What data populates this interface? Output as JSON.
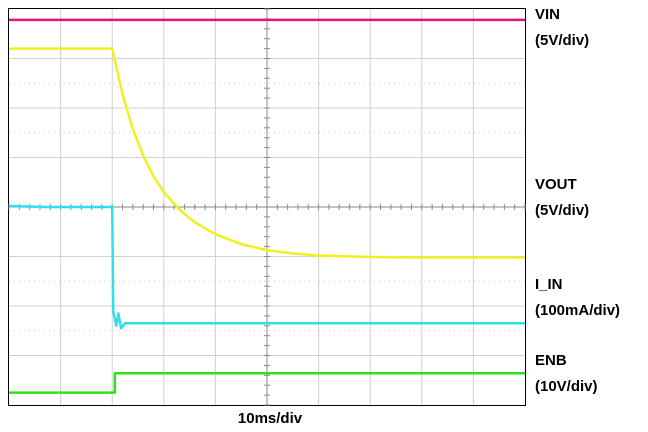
{
  "chart_data": {
    "type": "line",
    "title": "",
    "xlabel": "10ms/div",
    "ylabel": "",
    "grid": true,
    "x_divisions": 10,
    "y_divisions": 8,
    "xlim_div": [
      0,
      10
    ],
    "ylim_div": [
      0,
      8
    ],
    "series": [
      {
        "name": "VIN",
        "scale": "(5V/div)",
        "color": "#e0147a",
        "x_div": [
          0,
          10
        ],
        "y_div": [
          7.78,
          7.78
        ]
      },
      {
        "name": "VOUT",
        "scale": "(5V/div)",
        "color": "#f2ef20",
        "x_div": [
          0,
          1.0,
          2.0,
          2.0,
          2.2,
          2.4,
          2.6,
          2.8,
          3.0,
          3.3,
          3.6,
          4.0,
          4.5,
          5.0,
          5.5,
          6.0,
          7.0,
          8.0,
          9.0,
          10.0
        ],
        "y_div": [
          7.2,
          7.2,
          7.2,
          7.2,
          6.28,
          5.58,
          5.04,
          4.62,
          4.3,
          3.95,
          3.69,
          3.45,
          3.25,
          3.13,
          3.06,
          3.02,
          2.99,
          2.98,
          2.98,
          2.98
        ]
      },
      {
        "name": "I_IN",
        "scale": "(100mA/div)",
        "color": "#2ee0ec",
        "x_div": [
          0,
          0.7,
          2.0,
          2.02,
          2.08,
          2.12,
          2.17,
          2.25,
          10
        ],
        "y_div": [
          4.02,
          4.0,
          4.0,
          1.9,
          1.6,
          1.85,
          1.55,
          1.65,
          1.65
        ]
      },
      {
        "name": "ENB",
        "scale": "(10V/div)",
        "color": "#2ee01e",
        "x_div": [
          0,
          2.05,
          2.05,
          10
        ],
        "y_div": [
          0.25,
          0.25,
          0.64,
          0.64
        ]
      }
    ]
  },
  "channels": {
    "vin": {
      "name": "VIN",
      "scale": "(5V/div)"
    },
    "vout": {
      "name": "VOUT",
      "scale": "(5V/div)"
    },
    "iin": {
      "name": "I_IN",
      "scale": "(100mA/div)"
    },
    "enb": {
      "name": "ENB",
      "scale": "(10V/div)"
    }
  },
  "time_scale": "10ms/div"
}
